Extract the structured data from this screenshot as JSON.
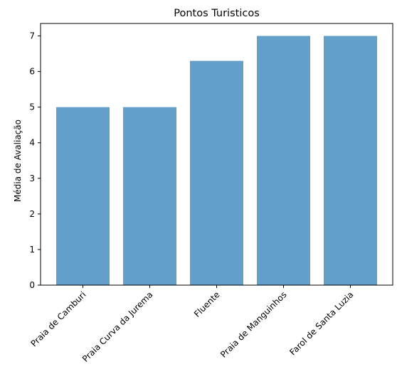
{
  "chart_data": {
    "type": "bar",
    "title": "Pontos Turisticos",
    "xlabel": "",
    "ylabel": "Média de Avaliação",
    "categories": [
      "Praia de Camburi",
      "Praia Curva da Jurema",
      "Fluente",
      "Praia de Manguinhos",
      "Farol de Santa Luzia"
    ],
    "values": [
      5.0,
      5.0,
      6.3,
      7.0,
      7.0
    ],
    "ylim": [
      0,
      7.35
    ],
    "yticks": [
      "0",
      "1",
      "2",
      "3",
      "4",
      "5",
      "6",
      "7"
    ],
    "bar_color": "#1f77b4",
    "bar_opacity": 0.7,
    "x_tick_rotation": -45,
    "grid": false
  }
}
